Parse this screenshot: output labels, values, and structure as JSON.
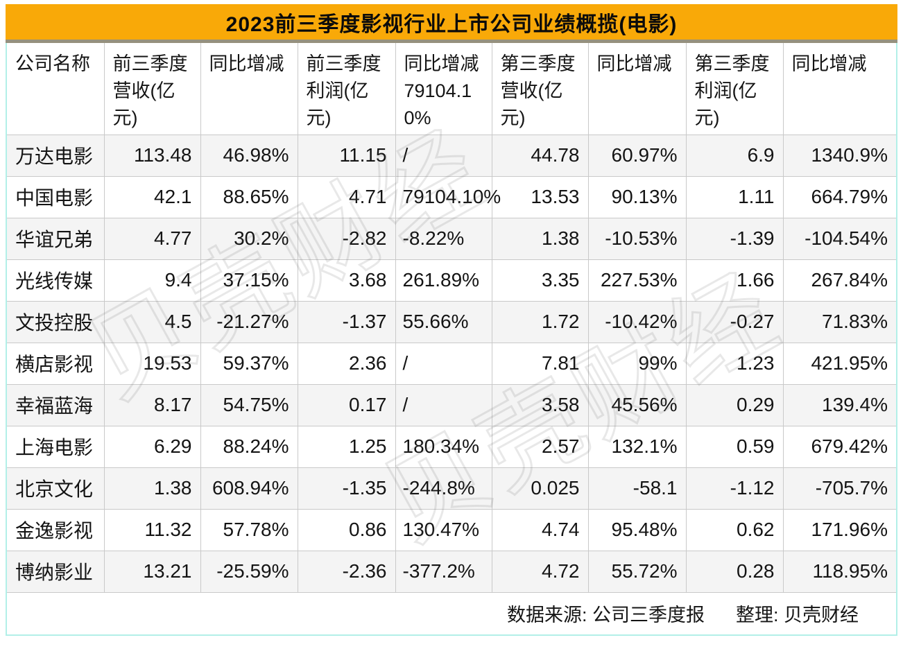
{
  "colors": {
    "title_bar_orange": "#F9A908",
    "title_underline_gray": "#96917E",
    "outer_border_cyan": "#B2EFE8",
    "grid_line_gray": "#C9C9C9",
    "zebra_row_gray": "#F4F4F4",
    "text_black": "#141414"
  },
  "watermark": {
    "text": "贝壳财经"
  },
  "footer": {
    "source_note": "数据来源: 公司三季度报",
    "compiled_by": "整理: 贝壳财经"
  },
  "chart_data": {
    "type": "table",
    "title": "2023前三季度影视行业上市公司业绩概揽(电影)",
    "columns": [
      "公司名称",
      "前三季度营收(亿元)",
      "同比增减",
      "前三季度利润(亿元)",
      "同比增减79104.10%",
      "第三季度营收(亿元)",
      "同比增减",
      "第三季度利润(亿元)",
      "同比增减"
    ],
    "rows": [
      [
        "万达电影",
        "113.48",
        "46.98%",
        "11.15",
        "/",
        "44.78",
        "60.97%",
        "6.9",
        "1340.9%"
      ],
      [
        "中国电影",
        "42.1",
        "88.65%",
        "4.71",
        "79104.10%",
        "13.53",
        "90.13%",
        "1.11",
        "664.79%"
      ],
      [
        "华谊兄弟",
        "4.77",
        "30.2%",
        "-2.82",
        "-8.22%",
        "1.38",
        "-10.53%",
        "-1.39",
        "-104.54%"
      ],
      [
        "光线传媒",
        "9.4",
        "37.15%",
        "3.68",
        "261.89%",
        "3.35",
        "227.53%",
        "1.66",
        "267.84%"
      ],
      [
        "文投控股",
        "4.5",
        "-21.27%",
        "-1.37",
        "55.66%",
        "1.72",
        "-10.42%",
        "-0.27",
        "71.83%"
      ],
      [
        "横店影视",
        "19.53",
        "59.37%",
        "2.36",
        "/",
        "7.81",
        "99%",
        "1.23",
        "421.95%"
      ],
      [
        "幸福蓝海",
        "8.17",
        "54.75%",
        "0.17",
        "/",
        "3.58",
        "45.56%",
        "0.29",
        "139.4%"
      ],
      [
        "上海电影",
        "6.29",
        "88.24%",
        "1.25",
        "180.34%",
        "2.57",
        "132.1%",
        "0.59",
        "679.42%"
      ],
      [
        "北京文化",
        "1.38",
        "608.94%",
        "-1.35",
        "-244.8%",
        "0.025",
        "-58.1",
        "-1.12",
        "-705.7%"
      ],
      [
        "金逸影视",
        "11.32",
        "57.78%",
        "0.86",
        "130.47%",
        "4.74",
        "95.48%",
        "0.62",
        "171.96%"
      ],
      [
        "博纳影业",
        "13.21",
        "-25.59%",
        "-2.36",
        "-377.2%",
        "4.72",
        "55.72%",
        "0.28",
        "118.95%"
      ]
    ],
    "source_note": "数据来源: 公司三季度报",
    "compiled_by": "整理: 贝壳财经"
  }
}
